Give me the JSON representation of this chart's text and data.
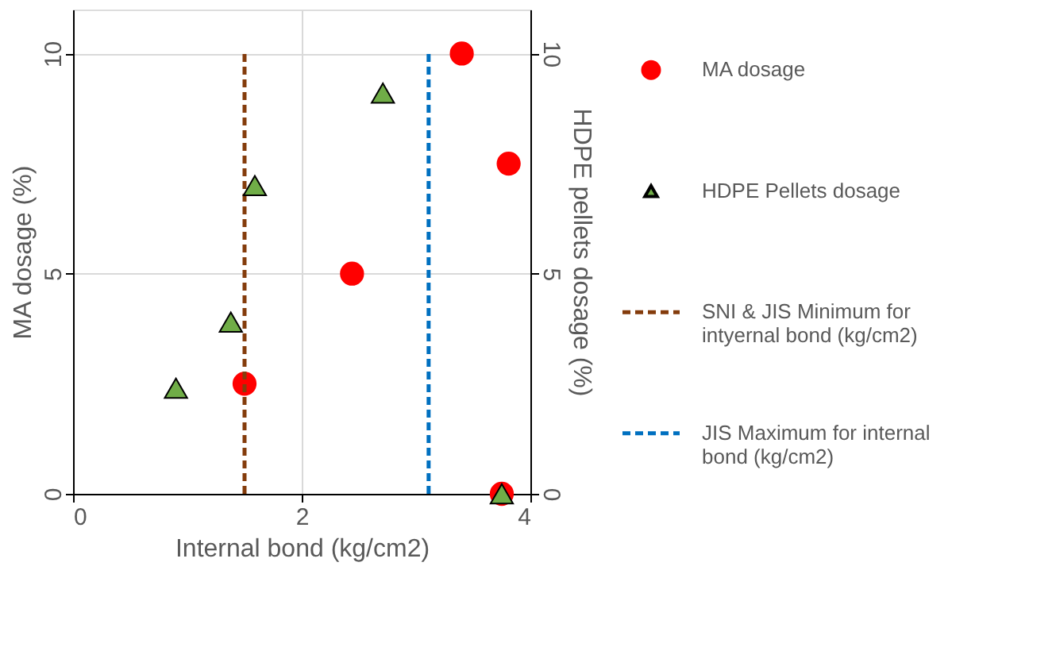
{
  "chart_data": {
    "type": "scatter",
    "xlabel": "Internal bond (kg/cm2)",
    "ylabel": "MA dosage (%)",
    "y2label": "HDPE pellets dosage (%)",
    "xlim": [
      0,
      4
    ],
    "xticks": [
      0,
      2,
      4
    ],
    "ylim": [
      0,
      11
    ],
    "yticks": [
      0,
      5,
      10
    ],
    "y2lim": [
      0,
      11
    ],
    "y2ticks": [
      0,
      5,
      10
    ],
    "grid": true,
    "legend": "right",
    "series": [
      {
        "name": "MA dosage",
        "marker": "circle",
        "color": "#ff0000",
        "x": [
          3.4,
          3.81,
          2.44,
          1.5,
          3.75
        ],
        "values": [
          10,
          7.5,
          5,
          2.5,
          0
        ]
      },
      {
        "name": "HDPE  Pellets dosage",
        "marker": "triangle",
        "color": "#70ad47",
        "axis": "y2",
        "x": [
          2.71,
          1.59,
          1.38,
          0.9,
          3.75
        ],
        "values": [
          9.1,
          7.0,
          3.9,
          2.4,
          0
        ]
      },
      {
        "name": "SNI & JIS Minimum for intyernal bond (kg/cm2)",
        "type": "line",
        "line_style": "dashed",
        "marker": "none",
        "color": "#843c0c",
        "x": [
          1.5,
          1.5
        ],
        "values": [
          0,
          10
        ]
      },
      {
        "name": "JIS Maximum for internal bond (kg/cm2)",
        "type": "line",
        "line_style": "dashed",
        "marker": "none",
        "color": "#0070c0",
        "x": [
          3.11,
          3.11
        ],
        "values": [
          0,
          10
        ]
      }
    ]
  }
}
